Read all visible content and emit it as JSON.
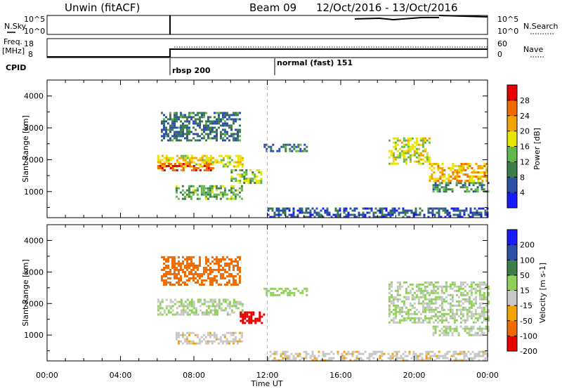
{
  "header": {
    "station": "Unwin (fitACF)",
    "beam": "Beam 09",
    "date_range": "12/Oct/2016 - 13/Oct/2016"
  },
  "strips": {
    "nsky_label": "N.Sky",
    "nsearch_label": "N.Search",
    "freq_label": "Freq.",
    "freq_unit": "[MHz]",
    "nave_label": "Nave",
    "cpid_label": "CPID",
    "nsky_ticks": [
      "10^5",
      "10^0"
    ],
    "freq_ticks": [
      "18",
      "8"
    ],
    "nave_ticks": [
      "60",
      "0"
    ],
    "cpid_events": [
      {
        "time": 6.0,
        "label": "rbsp 200"
      },
      {
        "time": 12.0,
        "label": "normal (fast) 151"
      }
    ]
  },
  "colors": {
    "power": [
      "#1a1aff",
      "#2d4fa8",
      "#3c7f4a",
      "#63b84d",
      "#e6e600",
      "#f2a300",
      "#f06a00",
      "#e60000"
    ],
    "velocity": [
      "#e60000",
      "#f06a00",
      "#f2a300",
      "#c8c8c8",
      "#8fd05a",
      "#3c7f4a",
      "#2d4fa8",
      "#1a1aff"
    ]
  },
  "chart_data": [
    {
      "type": "heatmap",
      "title": "Power",
      "xlabel": "Time UT",
      "ylabel": "Slant Range [km]",
      "xlim": [
        0,
        24
      ],
      "ylim": [
        180,
        4500
      ],
      "x_ticks": [
        "00:00",
        "04:00",
        "08:00",
        "12:00",
        "16:00",
        "20:00",
        "00:00"
      ],
      "y_ticks": [
        1000,
        2000,
        3000,
        4000
      ],
      "colorbar": {
        "label": "Power [dB]",
        "ticks": [
          "4",
          "8",
          "12",
          "16",
          "20",
          "24",
          "28"
        ],
        "range": [
          0,
          30
        ]
      },
      "regions": [
        {
          "t": [
            6.0,
            10.6
          ],
          "r": [
            1800,
            2150
          ],
          "value": 18
        },
        {
          "t": [
            6.0,
            9.0
          ],
          "r": [
            1650,
            1900
          ],
          "value": 26
        },
        {
          "t": [
            7.0,
            10.6
          ],
          "r": [
            800,
            1200
          ],
          "value": 12
        },
        {
          "t": [
            10.0,
            11.8
          ],
          "r": [
            1250,
            1700
          ],
          "value": 14
        },
        {
          "t": [
            6.2,
            10.5
          ],
          "r": [
            2600,
            3500
          ],
          "value": 8
        },
        {
          "t": [
            11.8,
            14.2
          ],
          "r": [
            2250,
            2500
          ],
          "value": 8
        },
        {
          "t": [
            12.0,
            24.0
          ],
          "r": [
            200,
            500
          ],
          "value": 6
        },
        {
          "t": [
            18.6,
            20.8
          ],
          "r": [
            1900,
            2700
          ],
          "value": 16
        },
        {
          "t": [
            20.8,
            24.0
          ],
          "r": [
            1350,
            1900
          ],
          "value": 20
        },
        {
          "t": [
            21.0,
            24.0
          ],
          "r": [
            1000,
            1300
          ],
          "value": 10
        }
      ]
    },
    {
      "type": "heatmap",
      "title": "Velocity",
      "xlabel": "Time UT",
      "ylabel": "Slant Range [km]",
      "xlim": [
        0,
        24
      ],
      "ylim": [
        180,
        4500
      ],
      "x_ticks": [
        "00:00",
        "04:00",
        "08:00",
        "12:00",
        "16:00",
        "20:00",
        "00:00"
      ],
      "y_ticks": [
        1000,
        2000,
        3000,
        4000
      ],
      "colorbar": {
        "label": "Velocity [m s-1]",
        "ticks": [
          "200",
          "100",
          "50",
          "15",
          "-15",
          "-50",
          "-100",
          "-200"
        ],
        "range": [
          -250,
          250
        ]
      },
      "regions": [
        {
          "t": [
            6.0,
            10.6
          ],
          "r": [
            1650,
            2150
          ],
          "value": 0
        },
        {
          "t": [
            7.0,
            10.6
          ],
          "r": [
            750,
            1100
          ],
          "value": -60
        },
        {
          "t": [
            10.5,
            11.8
          ],
          "r": [
            1350,
            1750
          ],
          "value": -220
        },
        {
          "t": [
            6.2,
            10.5
          ],
          "r": [
            2600,
            3500
          ],
          "value": -150
        },
        {
          "t": [
            11.8,
            14.2
          ],
          "r": [
            2250,
            2500
          ],
          "value": 30
        },
        {
          "t": [
            12.0,
            24.0
          ],
          "r": [
            200,
            500
          ],
          "value": -60
        },
        {
          "t": [
            18.6,
            24.0
          ],
          "r": [
            1400,
            2700
          ],
          "value": 0
        },
        {
          "t": [
            21.0,
            24.0
          ],
          "r": [
            1000,
            1300
          ],
          "value": 0
        }
      ]
    }
  ]
}
